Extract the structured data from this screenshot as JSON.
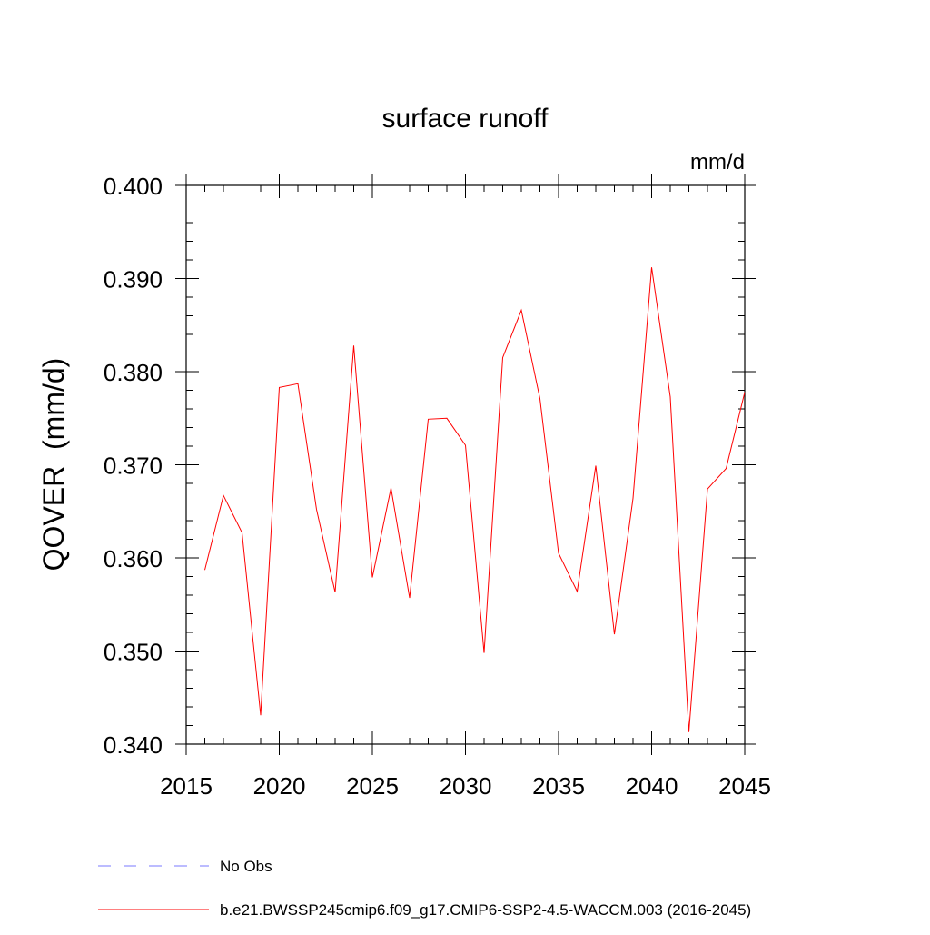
{
  "chart_data": {
    "type": "line",
    "title": "surface runoff",
    "units": "mm/d",
    "ylabel": "QOVER  (mm/d)",
    "xlabel": "",
    "xlim": [
      2015,
      2045
    ],
    "ylim": [
      0.34,
      0.4
    ],
    "x_ticks": [
      "2015",
      "2020",
      "2025",
      "2030",
      "2035",
      "2040",
      "2045"
    ],
    "y_ticks": [
      "0.340",
      "0.350",
      "0.360",
      "0.370",
      "0.380",
      "0.390",
      "0.400"
    ],
    "grid": false,
    "legend_position": "bottom",
    "colors": {
      "model": "#ff0000",
      "obs": "#7a7aff"
    },
    "legend": [
      {
        "label": "No Obs",
        "style": "dashed",
        "color": "#7a7aff"
      },
      {
        "label": "b.e21.BWSSP245cmip6.f09_g17.CMIP6-SSP2-4.5-WACCM.003 (2016-2045)",
        "style": "solid",
        "color": "#ff0000"
      }
    ],
    "series": [
      {
        "name": "b.e21.BWSSP245cmip6.f09_g17.CMIP6-SSP2-4.5-WACCM.003 (2016-2045)",
        "x": [
          2016,
          2017,
          2018,
          2019,
          2020,
          2021,
          2022,
          2023,
          2024,
          2025,
          2026,
          2027,
          2028,
          2029,
          2030,
          2031,
          2032,
          2033,
          2034,
          2035,
          2036,
          2037,
          2038,
          2039,
          2040,
          2041,
          2042,
          2043,
          2044,
          2045
        ],
        "values": [
          0.3587,
          0.3667,
          0.3627,
          0.3431,
          0.3783,
          0.3787,
          0.3652,
          0.3563,
          0.3828,
          0.3579,
          0.3675,
          0.3557,
          0.3749,
          0.375,
          0.3721,
          0.3498,
          0.3815,
          0.3866,
          0.3771,
          0.3605,
          0.3564,
          0.3699,
          0.3518,
          0.3664,
          0.3912,
          0.3773,
          0.3413,
          0.3674,
          0.3696,
          0.3778
        ]
      }
    ]
  }
}
